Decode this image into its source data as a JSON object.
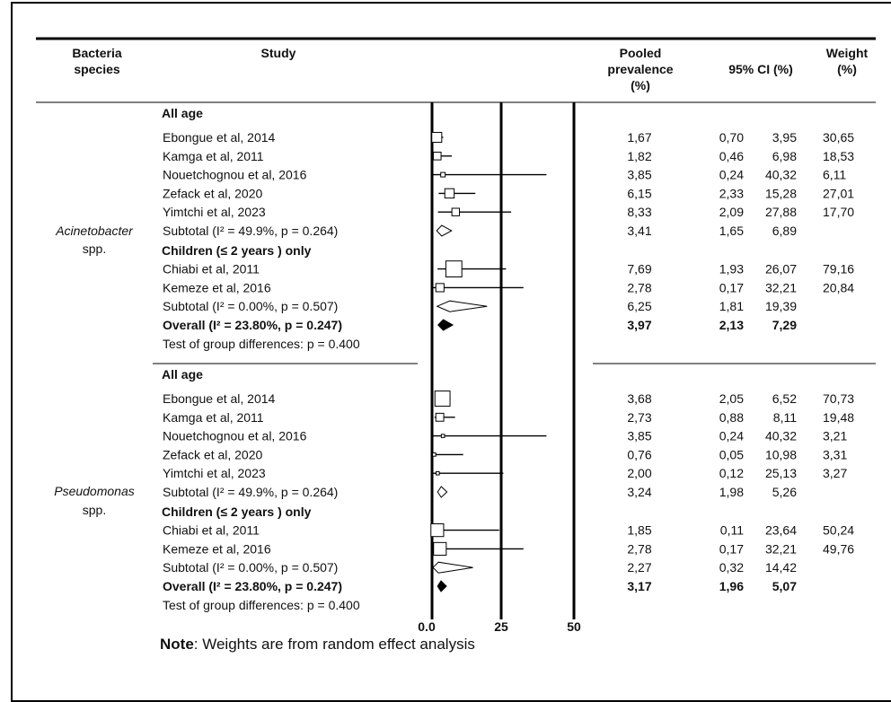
{
  "headers": {
    "species": [
      "Bacteria",
      "species"
    ],
    "study": "Study",
    "pooled": [
      "Pooled",
      "prevalence",
      "(%)"
    ],
    "ci": "95% CI (%)",
    "weight": [
      "Weight",
      "(%)"
    ]
  },
  "note": {
    "bold": "Note",
    "text": ": Weights are from random effect analysis"
  },
  "chart_data": {
    "type": "forest",
    "x_axis": {
      "ticks": [
        0,
        25,
        50
      ],
      "tick_labels": [
        "0.0",
        "25",
        "50"
      ],
      "range": [
        0,
        50
      ]
    },
    "groups": [
      {
        "species": [
          "Acinetobacter",
          "spp."
        ],
        "rows": [
          {
            "kind": "header",
            "label": "All age"
          },
          {
            "kind": "study",
            "label": "Ebongue et al, 2014",
            "est": 1.67,
            "lo": 0.7,
            "hi": 3.95,
            "est_t": "1,67",
            "lo_t": "0,70",
            "hi_t": "3,95",
            "w_t": "30,65",
            "w": 30.65
          },
          {
            "kind": "study",
            "label": "Kamga et al, 2011",
            "est": 1.82,
            "lo": 0.46,
            "hi": 6.98,
            "est_t": "1,82",
            "lo_t": "0,46",
            "hi_t": "6,98",
            "w_t": "18,53",
            "w": 18.53
          },
          {
            "kind": "study",
            "label": "Nouetchognou et al, 2016",
            "est": 3.85,
            "lo": 0.24,
            "hi": 40.32,
            "est_t": "3,85",
            "lo_t": "0,24",
            "hi_t": "40,32",
            "w_t": "6,11",
            "w": 6.11
          },
          {
            "kind": "study",
            "label": "Zefack et al, 2020",
            "est": 6.15,
            "lo": 2.33,
            "hi": 15.28,
            "est_t": "6,15",
            "lo_t": "2,33",
            "hi_t": "15,28",
            "w_t": "27,01",
            "w": 27.01
          },
          {
            "kind": "study",
            "label": "Yimtchi et al, 2023",
            "est": 8.33,
            "lo": 2.09,
            "hi": 27.88,
            "est_t": "8,33",
            "lo_t": "2,09",
            "hi_t": "27,88",
            "w_t": "17,70",
            "w": 17.7
          },
          {
            "kind": "subtotal",
            "label": "Subtotal (I² = 49.9%, p = 0.264)",
            "est": 3.41,
            "lo": 1.65,
            "hi": 6.89,
            "est_t": "3,41",
            "lo_t": "1,65",
            "hi_t": "6,89",
            "w_t": ""
          },
          {
            "kind": "header",
            "label": "Children (≤ 2 years ) only"
          },
          {
            "kind": "study",
            "label": "Chiabi et al, 2011",
            "est": 7.69,
            "lo": 1.93,
            "hi": 26.07,
            "est_t": "7,69",
            "lo_t": "1,93",
            "hi_t": "26,07",
            "w_t": "79,16",
            "w": 79.16
          },
          {
            "kind": "study",
            "label": "Kemeze et al, 2016",
            "est": 2.78,
            "lo": 0.17,
            "hi": 32.21,
            "est_t": "2,78",
            "lo_t": "0,17",
            "hi_t": "32,21",
            "w_t": "20,84",
            "w": 20.84
          },
          {
            "kind": "subtotal",
            "label": "Subtotal (I² = 0.00%, p = 0.507)",
            "est": 6.25,
            "lo": 1.81,
            "hi": 19.39,
            "est_t": "6,25",
            "lo_t": "1,81",
            "hi_t": "19,39",
            "w_t": ""
          },
          {
            "kind": "overall",
            "label": "Overall (I² = 23.80%, p = 0.247)",
            "est": 3.97,
            "lo": 2.13,
            "hi": 7.29,
            "est_t": "3,97",
            "lo_t": "2,13",
            "hi_t": "7,29",
            "w_t": ""
          },
          {
            "kind": "text",
            "label": "Test of group differences: p = 0.400"
          }
        ]
      },
      {
        "species": [
          "Pseudomonas",
          "spp."
        ],
        "rows": [
          {
            "kind": "header",
            "label": "All age"
          },
          {
            "kind": "study",
            "label": "Ebongue et al, 2014",
            "est": 3.68,
            "lo": 2.05,
            "hi": 6.52,
            "est_t": "3,68",
            "lo_t": "2,05",
            "hi_t": "6,52",
            "w_t": "70,73",
            "w": 70.73
          },
          {
            "kind": "study",
            "label": "Kamga et al, 2011",
            "est": 2.73,
            "lo": 0.88,
            "hi": 8.11,
            "est_t": "2,73",
            "lo_t": "0,88",
            "hi_t": "8,11",
            "w_t": "19,48",
            "w": 19.48
          },
          {
            "kind": "study",
            "label": "Nouetchognou et al, 2016",
            "est": 3.85,
            "lo": 0.24,
            "hi": 40.32,
            "est_t": "3,85",
            "lo_t": "0,24",
            "hi_t": "40,32",
            "w_t": "3,21",
            "w": 3.21
          },
          {
            "kind": "study",
            "label": "Zefack et al, 2020",
            "est": 0.76,
            "lo": 0.05,
            "hi": 10.98,
            "est_t": "0,76",
            "lo_t": "0,05",
            "hi_t": "10,98",
            "w_t": "3,31",
            "w": 3.31
          },
          {
            "kind": "study",
            "label": "Yimtchi et al, 2023",
            "est": 2.0,
            "lo": 0.12,
            "hi": 25.13,
            "est_t": "2,00",
            "lo_t": "0,12",
            "hi_t": "25,13",
            "w_t": "3,27",
            "w": 3.27
          },
          {
            "kind": "subtotal",
            "label": "Subtotal (I² = 49.9%, p = 0.264)",
            "est": 3.24,
            "lo": 1.98,
            "hi": 5.26,
            "est_t": "3,24",
            "lo_t": "1,98",
            "hi_t": "5,26",
            "w_t": ""
          },
          {
            "kind": "header",
            "label": "Children (≤ 2 years ) only"
          },
          {
            "kind": "study",
            "label": "Chiabi et al, 2011",
            "est": 1.85,
            "lo": 0.11,
            "hi": 23.64,
            "est_t": "1,85",
            "lo_t": "0,11",
            "hi_t": "23,64",
            "w_t": "50,24",
            "w": 50.24
          },
          {
            "kind": "study",
            "label": "Kemeze et al, 2016",
            "est": 2.78,
            "lo": 0.17,
            "hi": 32.21,
            "est_t": "2,78",
            "lo_t": "0,17",
            "hi_t": "32,21",
            "w_t": "49,76",
            "w": 49.76
          },
          {
            "kind": "subtotal",
            "label": "Subtotal (I² = 0.00%, p = 0.507)",
            "est": 2.27,
            "lo": 0.32,
            "hi": 14.42,
            "est_t": "2,27",
            "lo_t": "0,32",
            "hi_t": "14,42",
            "w_t": ""
          },
          {
            "kind": "overall",
            "label": "Overall (I² = 23.80%, p = 0.247)",
            "est": 3.17,
            "lo": 1.96,
            "hi": 5.07,
            "est_t": "3,17",
            "lo_t": "1,96",
            "hi_t": "5,07",
            "w_t": ""
          },
          {
            "kind": "text",
            "label": "Test of group differences: p = 0.400"
          }
        ]
      }
    ]
  }
}
